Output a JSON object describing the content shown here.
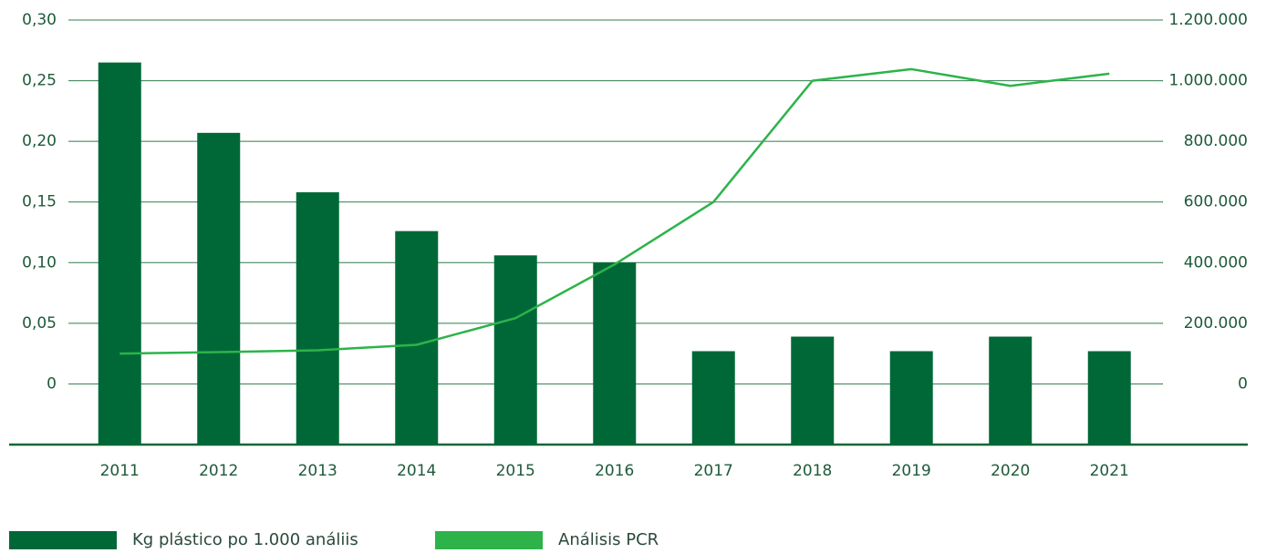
{
  "chart_data": {
    "type": "bar_line",
    "categories": [
      "2011",
      "2012",
      "2013",
      "2014",
      "2015",
      "2016",
      "2017",
      "2018",
      "2019",
      "2020",
      "2021"
    ],
    "series": [
      {
        "name": "Kg plástico po 1.000 análiis",
        "type": "bar",
        "color": "#006837",
        "axis": "y",
        "values": [
          0.265,
          0.207,
          0.158,
          0.126,
          0.106,
          0.1,
          0.027,
          0.039,
          0.027,
          0.039,
          0.027
        ]
      },
      {
        "name": "Análisis PCR",
        "type": "line",
        "color": "#2db34a",
        "axis": "y2",
        "values": [
          100000,
          105000,
          111000,
          129000,
          217000,
          394000,
          600000,
          1000000,
          1038000,
          983000,
          1023000
        ]
      }
    ],
    "ylim": [
      -0.05,
      0.3
    ],
    "yticks": [
      0,
      {
        "value": 0.05,
        "label": "0,05"
      },
      {
        "value": 0.1,
        "label": "0,10"
      },
      {
        "value": 0.15,
        "label": "0,15"
      },
      {
        "value": 0.2,
        "label": "0,20"
      },
      {
        "value": 0.25,
        "label": "0,25"
      },
      {
        "value": 0.3,
        "label": "0,30"
      }
    ],
    "y2lim": [
      -200000,
      1200000
    ],
    "y2ticks": [
      0,
      {
        "value": 200000,
        "label": "200.000"
      },
      {
        "value": 400000,
        "label": "400.000"
      },
      {
        "value": 600000,
        "label": "600.000"
      },
      {
        "value": 800000,
        "label": "800.000"
      },
      {
        "value": 1000000,
        "label": "1.000.000"
      },
      {
        "value": 1200000,
        "label": "1.200.000"
      }
    ],
    "grid": true,
    "legend": "bottom-left"
  }
}
